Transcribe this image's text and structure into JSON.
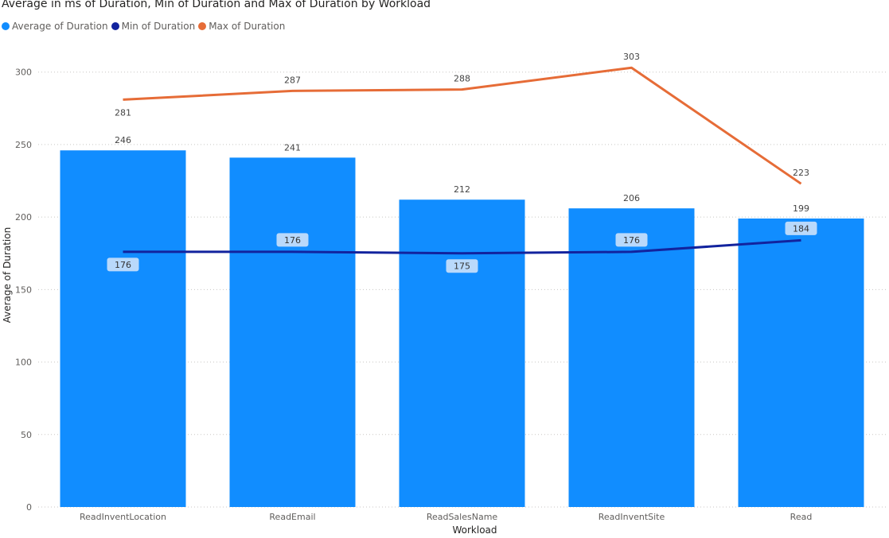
{
  "chart_data": {
    "type": "bar",
    "title": "Average in ms of Duration, Min of Duration and Max of Duration by Workload",
    "xlabel": "Workload",
    "ylabel": "Average of Duration",
    "ylim": [
      0,
      325
    ],
    "yticks": [
      0,
      50,
      100,
      150,
      200,
      250,
      300
    ],
    "grid": true,
    "legend_position": "top-left",
    "categories": [
      "ReadInventLocation",
      "ReadEmail",
      "ReadSalesName",
      "ReadInventSite",
      "Read"
    ],
    "series": [
      {
        "name": "Average of  Duration",
        "type": "bar",
        "color": "#118dff",
        "values": [
          246,
          241,
          212,
          206,
          199
        ]
      },
      {
        "name": "Min of  Duration",
        "type": "line",
        "color": "#12239e",
        "values": [
          176,
          176,
          175,
          176,
          184
        ]
      },
      {
        "name": "Max of  Duration",
        "type": "line",
        "color": "#e66c37",
        "values": [
          281,
          287,
          288,
          303,
          223
        ]
      }
    ]
  }
}
